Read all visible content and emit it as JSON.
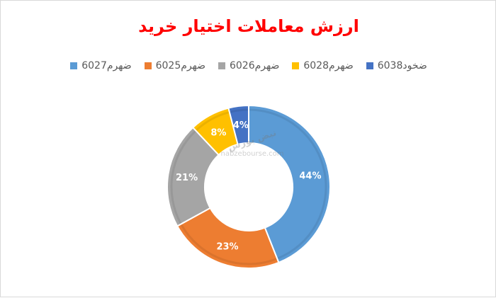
{
  "chart_data": {
    "type": "pie",
    "title": "ارزش معاملات اختیار خرید",
    "categories": [
      "ضهرم6027",
      "ضهرم6025",
      "ضهرم6026",
      "ضهرم6028",
      "ضخود6038"
    ],
    "values": [
      44,
      23,
      21,
      8,
      4
    ],
    "data_labels": [
      "44%",
      "23%",
      "21%",
      "8%",
      "4%"
    ],
    "colors": [
      "#5b9bd5",
      "#ed7d31",
      "#a5a5a5",
      "#ffc000",
      "#4472c4"
    ],
    "legend_position": "top",
    "donut": true
  },
  "watermark": {
    "logo_text": "نبض بورس",
    "site": "nabzebourse.com"
  }
}
